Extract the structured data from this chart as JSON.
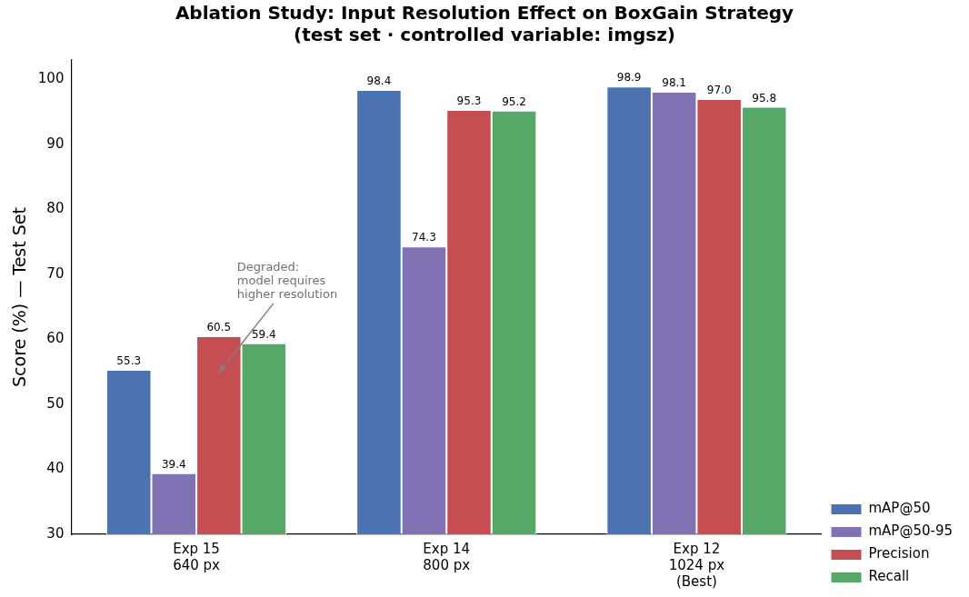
{
  "chart_data": {
    "type": "bar",
    "title": "Ablation Study: Input Resolution Effect on BoxGain Strategy\n(test set · controlled variable: imgsz)",
    "ylabel": "Score (%) — Test Set",
    "categories": [
      "Exp 15\n640 px",
      "Exp 14\n800 px",
      "Exp 12\n1024 px\n(Best)"
    ],
    "series": [
      {
        "name": "mAP@50",
        "color": "#4c72b0",
        "values": [
          55.3,
          98.4,
          98.9
        ],
        "value_labels": [
          "55.3",
          "98.4",
          "98.9"
        ]
      },
      {
        "name": "mAP@50-95",
        "color": "#8172b3",
        "values": [
          39.4,
          74.3,
          98.1
        ],
        "value_labels": [
          "39.4",
          "74.3",
          "98.1"
        ]
      },
      {
        "name": "Precision",
        "color": "#c44e52",
        "values": [
          60.5,
          95.3,
          97.0
        ],
        "value_labels": [
          "60.5",
          "95.3",
          "97.0"
        ]
      },
      {
        "name": "Recall",
        "color": "#55a868",
        "values": [
          59.4,
          95.2,
          95.8
        ],
        "value_labels": [
          "59.4",
          "95.2",
          "95.8"
        ]
      }
    ],
    "ylim": [
      30,
      103
    ],
    "yticks": [
      30,
      40,
      50,
      60,
      70,
      80,
      90,
      100
    ],
    "grid": false,
    "legend": "bottom right",
    "annotations": [
      "Degraded:\nmodel requires\nhigher resolution"
    ]
  }
}
